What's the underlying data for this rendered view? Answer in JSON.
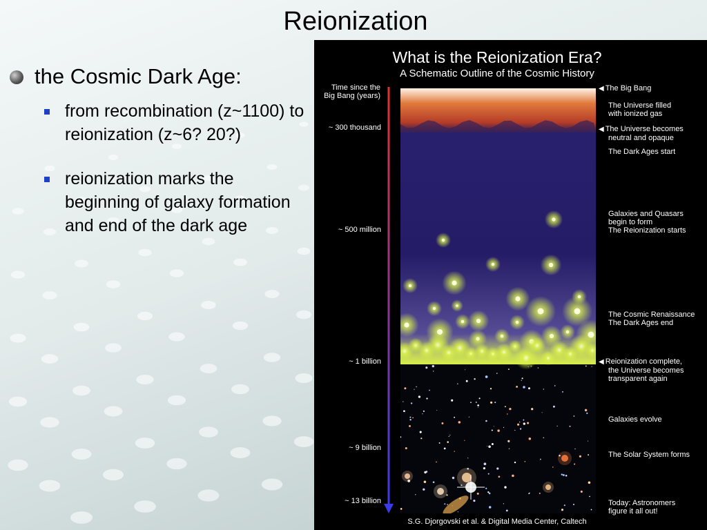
{
  "slide": {
    "title": "Reionization"
  },
  "bullets": {
    "main": "the Cosmic Dark Age:",
    "sub": [
      "from recombination (z~1100) to reionization (z~6? 20?)",
      "reionization marks the beginning of galaxy formation and end of the dark age"
    ]
  },
  "figure": {
    "title": "What is the Reionization Era?",
    "subtitle": "A Schematic Outline of the Cosmic History",
    "time_header": [
      "Time since the",
      "Big Bang (years)"
    ],
    "time_labels": [
      "~ 300 thousand",
      "~ 500 million",
      "~ 1 billion",
      "~ 9 billion",
      "~ 13 billion"
    ],
    "events": [
      {
        "lines": [
          "The Big Bang"
        ],
        "arrow": true
      },
      {
        "lines": [
          "The Universe filled",
          "with ionized gas"
        ],
        "arrow": false
      },
      {
        "lines": [
          "The Universe becomes",
          "neutral and opaque"
        ],
        "arrow": true
      },
      {
        "lines": [
          "The Dark Ages start"
        ],
        "arrow": false
      },
      {
        "lines": [
          "Galaxies and Quasars",
          "begin to form",
          "The Reionization starts"
        ],
        "arrow": false
      },
      {
        "lines": [
          "The Cosmic Renaissance",
          "The Dark Ages end"
        ],
        "arrow": false
      },
      {
        "lines": [
          "Reionization complete,",
          "the Universe becomes",
          "transparent again"
        ],
        "arrow": true
      },
      {
        "lines": [
          "Galaxies evolve"
        ],
        "arrow": false
      },
      {
        "lines": [
          "The Solar System forms"
        ],
        "arrow": false
      },
      {
        "lines": [
          "Today: Astronomers",
          "figure it all out!"
        ],
        "arrow": false
      }
    ],
    "credit": "S.G. Djorgovski et al. & Digital Media Center, Caltech",
    "colors": {
      "ionized_gas": "#e07a3c",
      "dark_age": "#2a2270",
      "glow": "#d8f04a",
      "arrow_top": "#e53030",
      "arrow_bottom": "#3a3ae8"
    }
  }
}
